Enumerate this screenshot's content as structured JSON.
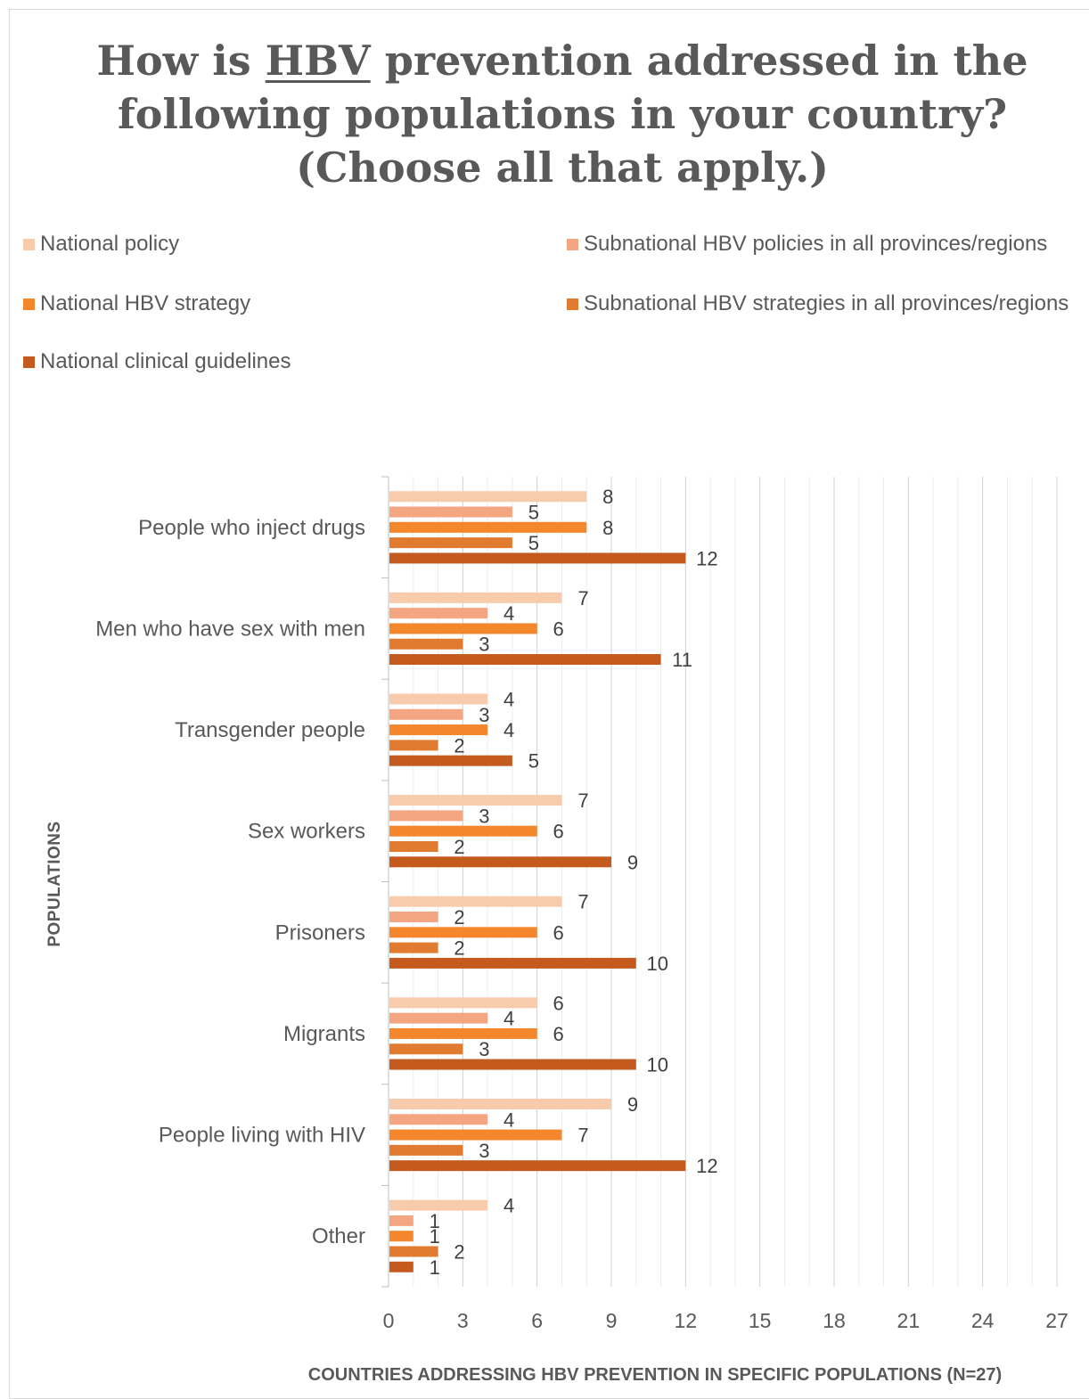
{
  "title": {
    "prefix": "How is ",
    "emphasis": "HBV",
    "line1_suffix": " prevention addressed in the",
    "line2": "following populations in your country?",
    "line3": "(Choose all that apply.)"
  },
  "legend": {
    "items": [
      {
        "label": "National policy",
        "color": "#f8cbad"
      },
      {
        "label": "Subnational HBV policies in all provinces/regions",
        "color": "#f4a582"
      },
      {
        "label": "National HBV strategy",
        "color": "#f4862c"
      },
      {
        "label": "Subnational HBV strategies in all provinces/regions",
        "color": "#e07b2f"
      },
      {
        "label": "National clinical guidelines",
        "color": "#c55a1e"
      }
    ]
  },
  "chart_data": {
    "type": "bar",
    "orientation": "horizontal",
    "ylabel": "POPULATIONS",
    "xlabel": "COUNTRIES ADDRESSING HBV PREVENTION IN SPECIFIC POPULATIONS (N=27)",
    "xlim": [
      0,
      27
    ],
    "xticks": [
      0,
      3,
      6,
      9,
      12,
      15,
      18,
      21,
      24,
      27
    ],
    "grid": true,
    "legend_position": "top",
    "categories": [
      "People who inject drugs",
      "Men who have sex with men",
      "Transgender people",
      "Sex workers",
      "Prisoners",
      "Migrants",
      "People living with HIV",
      "Other"
    ],
    "series": [
      {
        "name": "National policy",
        "color": "#f8cbad",
        "values": [
          8,
          7,
          4,
          7,
          7,
          6,
          9,
          4
        ]
      },
      {
        "name": "Subnational HBV policies in all provinces/regions",
        "color": "#f4a582",
        "values": [
          5,
          4,
          3,
          3,
          2,
          4,
          4,
          1
        ]
      },
      {
        "name": "National HBV strategy",
        "color": "#f4862c",
        "values": [
          8,
          6,
          4,
          6,
          6,
          6,
          7,
          1
        ]
      },
      {
        "name": "Subnational HBV strategies in all provinces/regions",
        "color": "#e07b2f",
        "values": [
          5,
          3,
          2,
          2,
          2,
          3,
          3,
          2
        ]
      },
      {
        "name": "National clinical guidelines",
        "color": "#c55a1e",
        "values": [
          12,
          11,
          5,
          9,
          10,
          10,
          12,
          1
        ]
      }
    ]
  }
}
